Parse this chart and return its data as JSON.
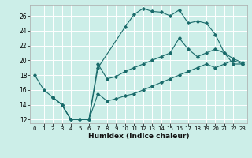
{
  "xlabel": "Humidex (Indice chaleur)",
  "bg_color": "#cceee8",
  "line_color": "#1a6b6b",
  "xlim": [
    -0.5,
    23.5
  ],
  "ylim": [
    11.5,
    27.5
  ],
  "xticks": [
    0,
    1,
    2,
    3,
    4,
    5,
    6,
    7,
    8,
    9,
    10,
    11,
    12,
    13,
    14,
    15,
    16,
    17,
    18,
    19,
    20,
    21,
    22,
    23
  ],
  "yticks": [
    12,
    14,
    16,
    18,
    20,
    22,
    24,
    26
  ],
  "line1_x": [
    0,
    1,
    2,
    3,
    4,
    5,
    6,
    7,
    10,
    11,
    12,
    13,
    14,
    15,
    16,
    17,
    18,
    19,
    20,
    21,
    22,
    23
  ],
  "line1_y": [
    18,
    16,
    15,
    14,
    12,
    12,
    12,
    19,
    24.5,
    26.2,
    27.0,
    26.6,
    26.5,
    26.0,
    26.8,
    25.0,
    25.3,
    25.0,
    23.5,
    21.0,
    20.2,
    19.7
  ],
  "line2_x": [
    2,
    3,
    4,
    5,
    6,
    7,
    8,
    9,
    10,
    11,
    12,
    13,
    14,
    15,
    16,
    17,
    18,
    19,
    20,
    21,
    22,
    23
  ],
  "line2_y": [
    15,
    14,
    12,
    12,
    12,
    19.5,
    17.5,
    17.8,
    18.5,
    19.0,
    19.5,
    20.0,
    20.5,
    21.0,
    23.0,
    21.5,
    20.5,
    21.0,
    21.5,
    21.0,
    19.5,
    19.5
  ],
  "line3_x": [
    2,
    3,
    4,
    5,
    6,
    7,
    8,
    9,
    10,
    11,
    12,
    13,
    14,
    15,
    16,
    17,
    18,
    19,
    20,
    21,
    22,
    23
  ],
  "line3_y": [
    15,
    14,
    12,
    12,
    12,
    15.5,
    14.5,
    14.8,
    15.2,
    15.5,
    16.0,
    16.5,
    17.0,
    17.5,
    18.0,
    18.5,
    19.0,
    19.5,
    19.0,
    19.5,
    20.0,
    19.5
  ]
}
